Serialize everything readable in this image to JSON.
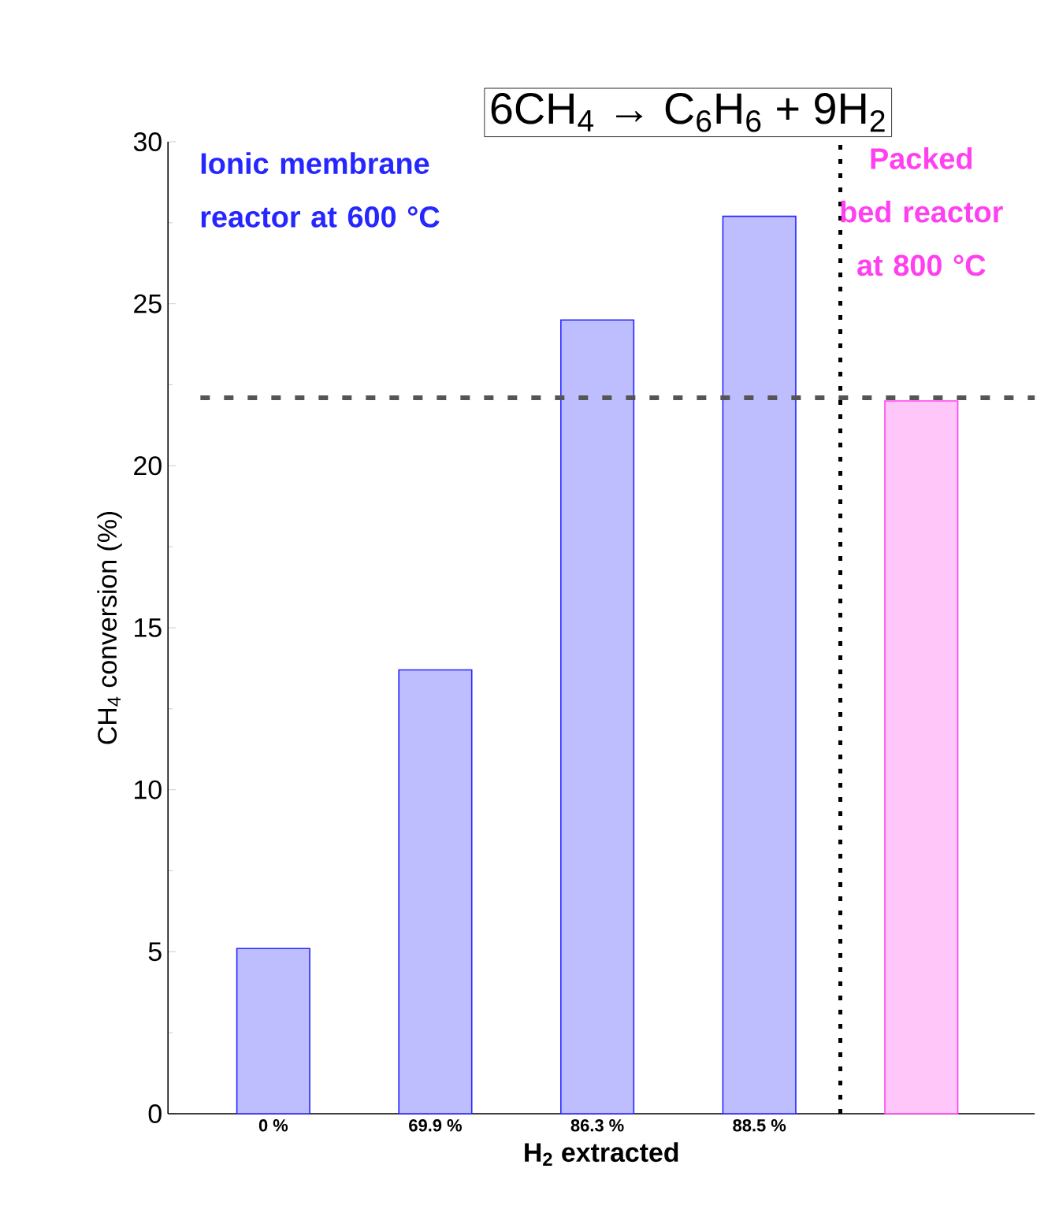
{
  "chart_data": {
    "type": "bar",
    "title": "6CH$_{4}$ → C$_{6}$H$_{6}$ + 9H$_{2}$",
    "xlabel": "H$_{2}$  extracted",
    "ylabel": "CH$_{4}$ conversion (%)",
    "categories": [
      "0 %",
      "69.9 %",
      "86.3 %",
      "88.5 %",
      null
    ],
    "values": [
      5.1,
      13.7,
      24.5,
      27.7,
      22.0
    ],
    "colors": [
      "#2626ff",
      "#2626ff",
      "#2626ff",
      "#2626ff",
      "#ff40f0"
    ],
    "ylim": [
      0,
      30
    ],
    "yticks": [
      0,
      5,
      10,
      15,
      20,
      25,
      30
    ],
    "grid": false,
    "ref_lines": [
      {
        "axis": "y",
        "value": 22.1,
        "label": null,
        "color": "#555555",
        "line_style": "dashed"
      }
    ],
    "annotations": [
      "Ionic membrane reactor at 600 °C",
      "Packed bed reactor at 800 °C"
    ]
  }
}
